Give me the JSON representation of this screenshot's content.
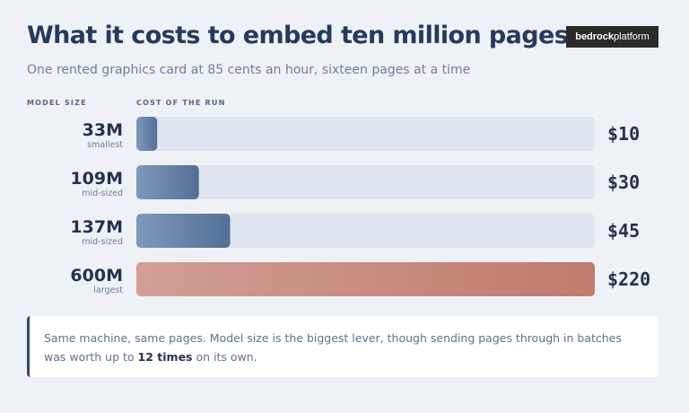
{
  "header": {
    "title": "What it costs to embed ten million pages",
    "subtitle": "One rented graphics card at 85 cents an hour, sixteen pages at a time",
    "logo_bold": "bedrock",
    "logo_light": "platform"
  },
  "columns": {
    "model_size": "MODEL SIZE",
    "cost": "COST OF THE RUN"
  },
  "chart_data": {
    "type": "bar",
    "orientation": "horizontal",
    "categories": [
      "33M",
      "109M",
      "137M",
      "600M"
    ],
    "category_notes": [
      "smallest",
      "mid-sized",
      "mid-sized",
      "largest"
    ],
    "values": [
      10,
      30,
      45,
      220
    ],
    "value_labels": [
      "$10",
      "$30",
      "$45",
      "$220"
    ],
    "xlim": [
      0,
      220
    ],
    "highlight_index": 3,
    "colors": {
      "bar_start": "#7e99bb",
      "bar_end": "#546f96",
      "highlight_start": "#d29e95",
      "highlight_end": "#bf7b6d",
      "track": "#dfe5ef",
      "label": "#24324f",
      "note": "#6d7f9c"
    }
  },
  "note": {
    "text_before": "Same machine, same pages. Model size is the biggest lever, though sending pages through in batches was worth up to ",
    "emphasis": "12 times",
    "text_after": " on its own."
  }
}
